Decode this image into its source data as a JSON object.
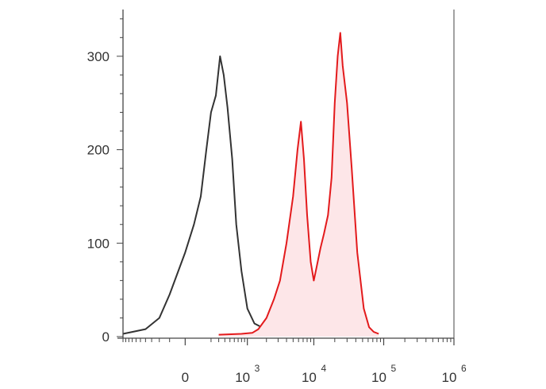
{
  "chart_data": {
    "type": "line",
    "title": "",
    "xlabel": "",
    "ylabel": "",
    "x_scale": "biexponential",
    "xlim": [
      -1000,
      1000000
    ],
    "ylim": [
      0,
      350
    ],
    "grid": false,
    "legend": "none",
    "y_ticks": [
      {
        "value": 0,
        "label": "0"
      },
      {
        "value": 100,
        "label": "100"
      },
      {
        "value": 200,
        "label": "200"
      },
      {
        "value": 300,
        "label": "300"
      }
    ],
    "x_ticks": [
      {
        "value": 0,
        "base": "0",
        "exp": ""
      },
      {
        "value": 1000,
        "base": "10",
        "exp": "3"
      },
      {
        "value": 10000,
        "base": "10",
        "exp": "4"
      },
      {
        "value": 100000,
        "base": "10",
        "exp": "5"
      },
      {
        "value": 1000000,
        "base": "10",
        "exp": "6"
      }
    ],
    "series": [
      {
        "color": "#333333",
        "fill": "none",
        "x": [
          -1000,
          -700,
          -400,
          -200,
          -100,
          0,
          50,
          100,
          150,
          200,
          260,
          320,
          380,
          450,
          550,
          650,
          800,
          1000,
          1300,
          1800,
          2500,
          3500,
          5000
        ],
        "y": [
          3,
          5,
          8,
          20,
          45,
          90,
          120,
          150,
          200,
          240,
          258,
          300,
          280,
          245,
          190,
          120,
          70,
          30,
          14,
          9,
          8,
          6,
          5
        ]
      },
      {
        "color": "#e31a1c",
        "fill": "#fde6e8",
        "x": [
          300,
          800,
          1200,
          1500,
          2000,
          2600,
          3200,
          4000,
          5000,
          5800,
          6500,
          7200,
          8000,
          9000,
          10000,
          11000,
          12500,
          14000,
          16000,
          18000,
          20000,
          22000,
          24000,
          26000,
          30000,
          35000,
          42000,
          52000,
          62000,
          72000,
          85000
        ],
        "y": [
          2,
          3,
          4,
          8,
          20,
          40,
          60,
          100,
          150,
          200,
          230,
          190,
          130,
          80,
          60,
          75,
          95,
          110,
          130,
          170,
          250,
          300,
          325,
          290,
          250,
          180,
          90,
          30,
          10,
          5,
          3
        ]
      }
    ]
  }
}
